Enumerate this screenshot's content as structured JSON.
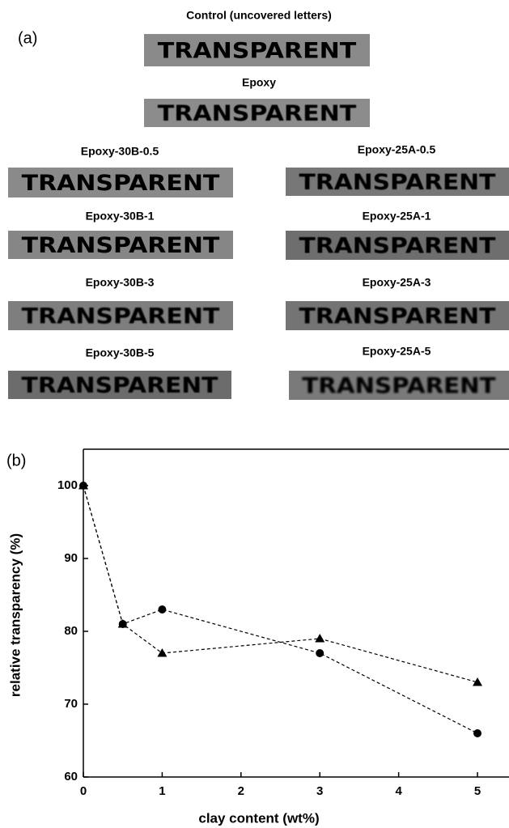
{
  "panel_a": {
    "label": "(a)",
    "samples": [
      {
        "caption": "Control (uncovered letters)",
        "text": "TRANSPARENT",
        "bg": "#8a8a8a",
        "fg": "#1a1a1a"
      },
      {
        "caption": "Epoxy",
        "text": "TRANSPARENT",
        "bg": "#8c8c8c",
        "fg": "#3a3a3a"
      },
      {
        "caption": "Epoxy-30B-0.5",
        "text": "TRANSPARENT",
        "bg": "#8a8a8a",
        "fg": "#2a2a2a"
      },
      {
        "caption": "Epoxy-25A-0.5",
        "text": "TRANSPARENT",
        "bg": "#777777",
        "fg": "#2e2e2e"
      },
      {
        "caption": "Epoxy-30B-1",
        "text": "TRANSPARENT",
        "bg": "#868686",
        "fg": "#222222"
      },
      {
        "caption": "Epoxy-25A-1",
        "text": "TRANSPARENT",
        "bg": "#6e6e6e",
        "fg": "#262626"
      },
      {
        "caption": "Epoxy-30B-3",
        "text": "TRANSPARENT",
        "bg": "#7e7e7e",
        "fg": "#3a3a3a"
      },
      {
        "caption": "Epoxy-25A-3",
        "text": "TRANSPARENT",
        "bg": "#747474",
        "fg": "#444444"
      },
      {
        "caption": "Epoxy-30B-5",
        "text": "TRANSPARENT",
        "bg": "#6c6c6c",
        "fg": "#3c3c3c"
      },
      {
        "caption": "Epoxy-25A-5",
        "text": "TRANSPARENT",
        "bg": "#7a7a7a",
        "fg": "#5c5c5c"
      }
    ]
  },
  "chart_data": {
    "type": "line",
    "panel_label": "(b)",
    "x_label": "clay content (wt%)",
    "y_label": "relative transparency (%)",
    "xlim": [
      0,
      5.4
    ],
    "ylim": [
      60,
      105
    ],
    "xticks": [
      0,
      1,
      2,
      3,
      4,
      5
    ],
    "yticks": [
      60,
      70,
      80,
      90,
      100
    ],
    "series": [
      {
        "marker": "circle",
        "color": "#000000",
        "x": [
          0,
          0.5,
          1,
          3,
          5
        ],
        "values": [
          100,
          81,
          83,
          77,
          66
        ]
      },
      {
        "marker": "triangle",
        "color": "#000000",
        "x": [
          0,
          0.5,
          1,
          3,
          5
        ],
        "values": [
          100,
          81,
          77,
          79,
          73
        ]
      }
    ]
  }
}
